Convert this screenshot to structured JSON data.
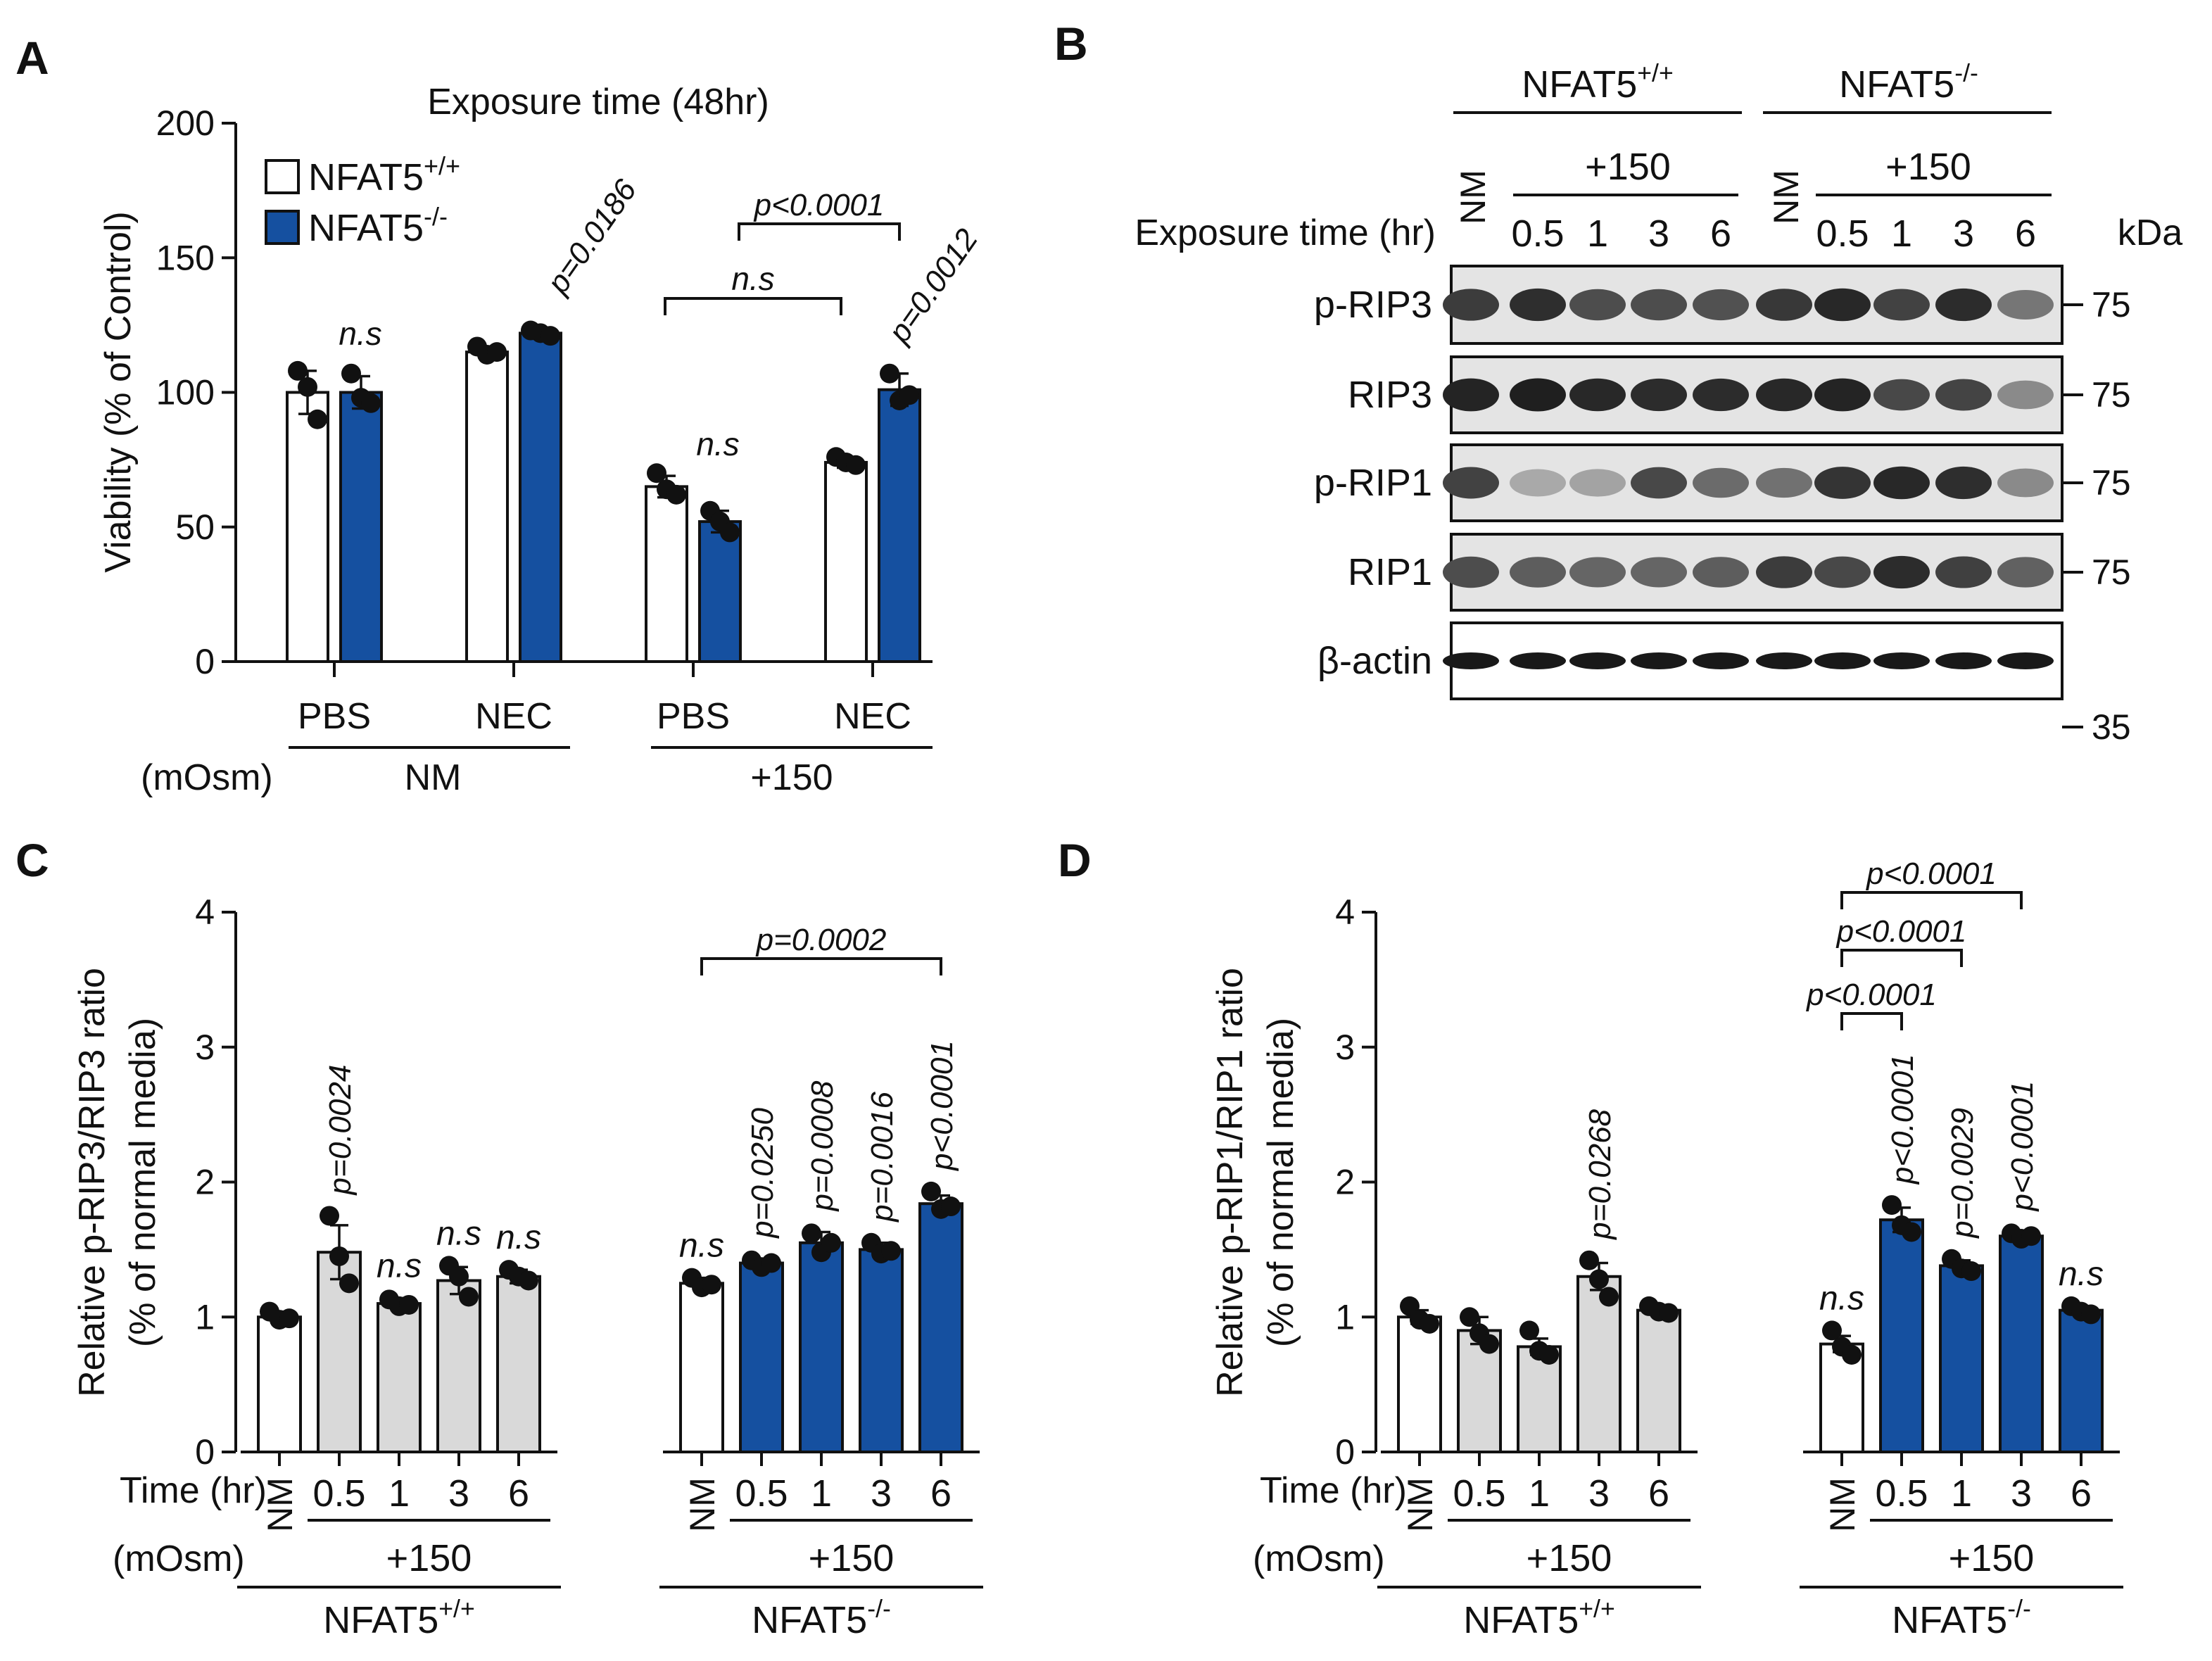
{
  "colors": {
    "ko": "#1550a0",
    "ctl": "#d9d9d9",
    "wt": "#ffffff",
    "axis": "#111111"
  },
  "panelA": {
    "letter": "A",
    "title": "Exposure time (48hr)",
    "legend": [
      {
        "label": "NFAT5",
        "sup": "+/+",
        "color": "#ffffff"
      },
      {
        "label": "NFAT5",
        "sup": "-/-",
        "color": "#1550a0"
      }
    ],
    "xgroups": [
      "PBS",
      "NEC",
      "PBS",
      "NEC"
    ],
    "row2_label": "(mOsm)",
    "row2": [
      "NM",
      "+150"
    ],
    "stat_labels": [
      "n.s",
      "p=0.0186",
      "n.s",
      "p<0.0001",
      "n.s",
      "p=0.0012"
    ]
  },
  "panelB": {
    "letter": "B",
    "groups": [
      {
        "label": "NFAT5",
        "sup": "+/+"
      },
      {
        "label": "NFAT5",
        "sup": "-/-"
      }
    ],
    "nm_label": "NM",
    "treat_label": "+150",
    "exposure_label": "Exposure time (hr)",
    "times": [
      "0.5",
      "1",
      "3",
      "6",
      "0.5",
      "1",
      "3",
      "6"
    ],
    "kda_label": "kDa",
    "blots": [
      {
        "name": "p-RIP3",
        "kda": "75",
        "intensity": [
          0.78,
          0.85,
          0.7,
          0.7,
          0.68,
          0.8,
          0.88,
          0.75,
          0.86,
          0.5
        ]
      },
      {
        "name": "RIP3",
        "kda": "75",
        "intensity": [
          0.9,
          0.92,
          0.88,
          0.86,
          0.86,
          0.88,
          0.9,
          0.72,
          0.74,
          0.4
        ]
      },
      {
        "name": "p-RIP1",
        "kda": "75",
        "intensity": [
          0.75,
          0.25,
          0.28,
          0.72,
          0.55,
          0.52,
          0.82,
          0.88,
          0.85,
          0.4
        ]
      },
      {
        "name": "RIP1",
        "kda": "75",
        "intensity": [
          0.7,
          0.62,
          0.58,
          0.58,
          0.62,
          0.78,
          0.72,
          0.86,
          0.76,
          0.6
        ]
      },
      {
        "name": "β-actin",
        "kda": "35",
        "intensity": [
          0.95,
          0.95,
          0.95,
          0.95,
          0.95,
          0.95,
          0.95,
          0.95,
          0.95,
          0.95
        ]
      }
    ]
  },
  "panelC": {
    "letter": "C"
  },
  "panelD": {
    "letter": "D"
  },
  "shared_cd": {
    "time_label": "Time (hr)",
    "mosm_label": "(mOsm)",
    "times": [
      "NM",
      "0.5",
      "1",
      "3",
      "6"
    ],
    "treat_label": "+150",
    "genotypes": [
      {
        "label": "NFAT5",
        "sup": "+/+"
      },
      {
        "label": "NFAT5",
        "sup": "-/-"
      }
    ]
  },
  "chart_data": [
    {
      "panel": "A",
      "type": "bar",
      "title": "Exposure time (48hr)",
      "ylabel": "Viability (% of Control)",
      "ylim": [
        0,
        200
      ],
      "yticks": [
        0,
        50,
        100,
        150,
        200
      ],
      "categories": [
        "PBS NM",
        "NEC NM",
        "PBS +150",
        "NEC +150"
      ],
      "series": [
        {
          "name": "NFAT5+/+",
          "values": [
            100,
            115,
            65,
            74
          ],
          "errors": [
            8,
            2,
            4,
            2
          ],
          "points": [
            [
              108,
              102,
              90
            ],
            [
              117,
              114,
              115
            ],
            [
              70,
              64,
              62
            ],
            [
              76,
              74,
              73
            ]
          ]
        },
        {
          "name": "NFAT5-/-",
          "values": [
            100,
            122,
            52,
            101
          ],
          "errors": [
            6,
            1.5,
            4,
            6
          ],
          "points": [
            [
              107,
              98,
              96
            ],
            [
              123,
              122,
              121
            ],
            [
              56,
              52,
              48
            ],
            [
              107,
              97,
              99
            ]
          ]
        }
      ],
      "annotations": [
        "n.s",
        "p=0.0186",
        "n.s",
        "p<0.0001",
        "n.s",
        "p=0.0012"
      ]
    },
    {
      "panel": "C",
      "type": "bar",
      "ylabel": "Relative p-RIP3/RIP3 ratio",
      "ylabel2": "(% of normal media)",
      "ylim": [
        0,
        4
      ],
      "yticks": [
        0,
        1,
        2,
        3,
        4
      ],
      "groups": [
        {
          "name": "NFAT5+/+",
          "categories": [
            "NM",
            "0.5",
            "1",
            "3",
            "6"
          ],
          "values": [
            1.0,
            1.48,
            1.1,
            1.27,
            1.3
          ],
          "errors": [
            0.04,
            0.2,
            0.04,
            0.1,
            0.05
          ],
          "points": [
            [
              1.04,
              0.98,
              0.99
            ],
            [
              1.75,
              1.45,
              1.25
            ],
            [
              1.13,
              1.08,
              1.09
            ],
            [
              1.38,
              1.3,
              1.15
            ],
            [
              1.35,
              1.3,
              1.27
            ]
          ],
          "annotations": [
            "",
            "p=0.0024",
            "n.s",
            "n.s",
            "n.s"
          ]
        },
        {
          "name": "NFAT5-/-",
          "categories": [
            "NM",
            "0.5",
            "1",
            "3",
            "6"
          ],
          "values": [
            1.25,
            1.4,
            1.55,
            1.5,
            1.84
          ],
          "errors": [
            0.04,
            0.03,
            0.08,
            0.05,
            0.06
          ],
          "points": [
            [
              1.29,
              1.22,
              1.24
            ],
            [
              1.42,
              1.37,
              1.4
            ],
            [
              1.62,
              1.48,
              1.55
            ],
            [
              1.55,
              1.47,
              1.49
            ],
            [
              1.93,
              1.8,
              1.82
            ]
          ],
          "annotations": [
            "n.s",
            "p=0.0250",
            "p=0.0008",
            "p=0.0016",
            "p<0.0001"
          ]
        }
      ],
      "brackets": [
        {
          "from": "NFAT5-/- NM",
          "to": "NFAT5-/- 6",
          "label": "p=0.0002"
        }
      ]
    },
    {
      "panel": "D",
      "type": "bar",
      "ylabel": "Relative p-RIP1/RIP1 ratio",
      "ylabel2": "(% of normal media)",
      "ylim": [
        0,
        4
      ],
      "yticks": [
        0,
        1,
        2,
        3,
        4
      ],
      "groups": [
        {
          "name": "NFAT5+/+",
          "categories": [
            "NM",
            "0.5",
            "1",
            "3",
            "6"
          ],
          "values": [
            1.0,
            0.9,
            0.78,
            1.3,
            1.05
          ],
          "errors": [
            0.05,
            0.1,
            0.06,
            0.1,
            0.03
          ],
          "points": [
            [
              1.08,
              0.98,
              0.95
            ],
            [
              1.0,
              0.88,
              0.8
            ],
            [
              0.9,
              0.75,
              0.72
            ],
            [
              1.42,
              1.28,
              1.15
            ],
            [
              1.08,
              1.04,
              1.03
            ]
          ],
          "annotations": [
            "",
            "",
            "",
            "p=0.0268",
            ""
          ]
        },
        {
          "name": "NFAT5-/-",
          "categories": [
            "NM",
            "0.5",
            "1",
            "3",
            "6"
          ],
          "values": [
            0.8,
            1.72,
            1.38,
            1.6,
            1.05
          ],
          "errors": [
            0.06,
            0.09,
            0.04,
            0.03,
            0.03
          ],
          "points": [
            [
              0.9,
              0.78,
              0.72
            ],
            [
              1.83,
              1.68,
              1.63
            ],
            [
              1.43,
              1.36,
              1.34
            ],
            [
              1.62,
              1.58,
              1.6
            ],
            [
              1.08,
              1.04,
              1.02
            ]
          ],
          "annotations": [
            "n.s",
            "p<0.0001",
            "p=0.0029",
            "p<0.0001",
            "n.s"
          ]
        }
      ],
      "brackets": [
        {
          "from": "NFAT5-/- NM",
          "to": "NFAT5-/- 3",
          "label": "p<0.0001"
        },
        {
          "from": "NFAT5-/- NM",
          "to": "NFAT5-/- 1",
          "label": "p<0.0001"
        },
        {
          "from": "NFAT5-/- NM",
          "to": "NFAT5-/- 0.5",
          "label": "p<0.0001"
        }
      ]
    }
  ]
}
